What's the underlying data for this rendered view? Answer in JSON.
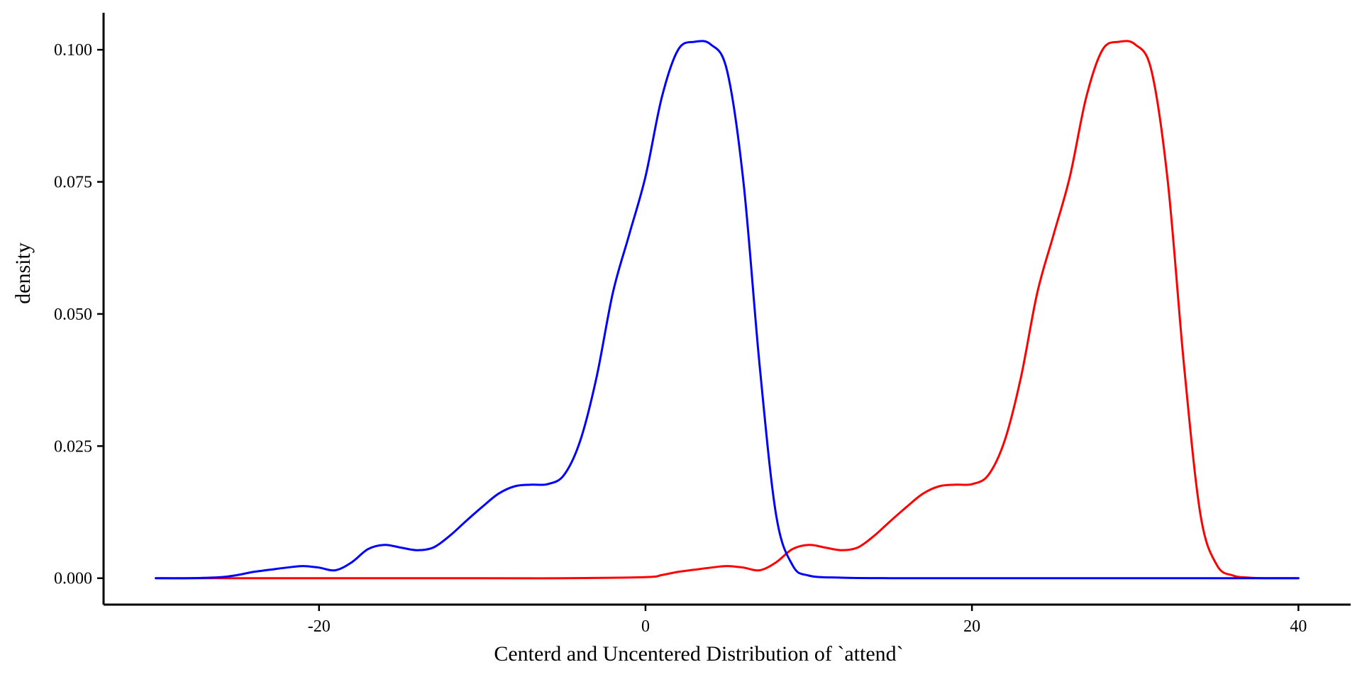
{
  "chart_data": {
    "type": "line",
    "title": "",
    "xlabel": "Centerd and Uncentered Distribution of `attend`",
    "ylabel": "density",
    "xlim": [
      -33.2,
      43.2
    ],
    "ylim": [
      -0.005,
      0.107
    ],
    "x_ticks": [
      -20,
      0,
      20,
      40
    ],
    "x_tick_labels": [
      "-20",
      "0",
      "20",
      "40"
    ],
    "y_ticks": [
      0.0,
      0.025,
      0.05,
      0.075,
      0.1
    ],
    "y_tick_labels": [
      "0.000",
      "0.025",
      "0.050",
      "0.075",
      "0.100"
    ],
    "grid": false,
    "legend": "none",
    "series": [
      {
        "color": "#0000FF",
        "x": [
          -30,
          -28,
          -26,
          -25,
          -24,
          -23,
          -22,
          -21,
          -20,
          -19,
          -18,
          -17,
          -16,
          -15,
          -14,
          -13,
          -12,
          -11,
          -10,
          -9,
          -8,
          -7,
          -6,
          -5,
          -4,
          -3,
          -2,
          -1,
          0,
          1,
          2,
          3,
          4,
          5,
          6,
          7,
          8,
          9,
          10,
          12,
          15,
          20,
          25,
          30,
          35,
          40
        ],
        "y": [
          0,
          0,
          0.0002,
          0.0006,
          0.0012,
          0.0016,
          0.002,
          0.0023,
          0.002,
          0.0015,
          0.003,
          0.0055,
          0.0063,
          0.0058,
          0.0053,
          0.0058,
          0.008,
          0.0108,
          0.0135,
          0.016,
          0.0174,
          0.0177,
          0.0178,
          0.0195,
          0.026,
          0.038,
          0.054,
          0.065,
          0.076,
          0.091,
          0.1,
          0.1015,
          0.101,
          0.096,
          0.075,
          0.04,
          0.012,
          0.0025,
          0.0005,
          0.0001,
          0,
          0,
          0,
          0,
          0,
          0
        ]
      },
      {
        "color": "#FF0000",
        "x": [
          -30,
          -20,
          -10,
          -5,
          0,
          1,
          2,
          3,
          4,
          5,
          6,
          7,
          8,
          9,
          10,
          11,
          12,
          13,
          14,
          15,
          16,
          17,
          18,
          19,
          20,
          21,
          22,
          23,
          24,
          25,
          26,
          27,
          28,
          29,
          30,
          31,
          32,
          33,
          34,
          35,
          36,
          37,
          38,
          40
        ],
        "y": [
          0,
          0,
          0,
          0,
          0.0002,
          0.0006,
          0.0012,
          0.0016,
          0.002,
          0.0023,
          0.002,
          0.0015,
          0.003,
          0.0055,
          0.0063,
          0.0058,
          0.0053,
          0.0058,
          0.008,
          0.0108,
          0.0135,
          0.016,
          0.0174,
          0.0177,
          0.0178,
          0.0195,
          0.026,
          0.038,
          0.054,
          0.065,
          0.076,
          0.091,
          0.1,
          0.1015,
          0.101,
          0.096,
          0.075,
          0.04,
          0.012,
          0.0025,
          0.0005,
          0.0001,
          0,
          0
        ]
      }
    ]
  }
}
